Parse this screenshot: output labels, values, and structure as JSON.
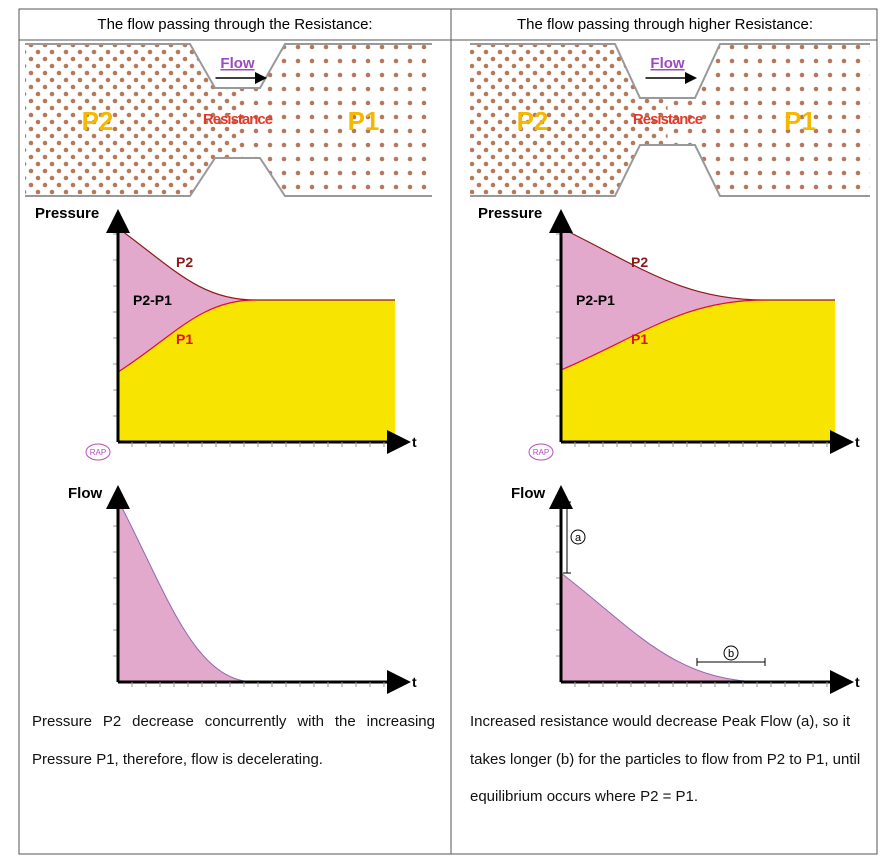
{
  "columns": [
    {
      "heading": "The flow passing through the Resistance:",
      "illustration": {
        "flow": "Flow",
        "resistance": "Resistance",
        "left": "P2",
        "right": "P1"
      },
      "pressure_graph": {
        "y_label": "Pressure",
        "x_label": "t",
        "upper": "P2",
        "lower": "P1",
        "gap": "P2-P1",
        "origin": "RAP"
      },
      "flow_graph": {
        "y_label": "Flow",
        "x_label": "t"
      },
      "caption": "Pressure P2 decrease concurrently with the increasing Pressure P1, therefore, flow is decelerating."
    },
    {
      "heading": "The flow passing through higher Resistance:",
      "illustration": {
        "flow": "Flow",
        "resistance": "Resistance",
        "left": "P2",
        "right": "P1"
      },
      "pressure_graph": {
        "y_label": "Pressure",
        "x_label": "t",
        "upper": "P2",
        "lower": "P1",
        "gap": "P2-P1",
        "origin": "RAP"
      },
      "flow_graph": {
        "y_label": "Flow",
        "x_label": "t",
        "peak_marker": "a",
        "time_marker": "b"
      },
      "caption": "Increased resistance would decrease Peak Flow (a), so it takes longer (b) for the particles to flow from P2 to P1, until equilibrium occurs where P2 = P1."
    }
  ]
}
